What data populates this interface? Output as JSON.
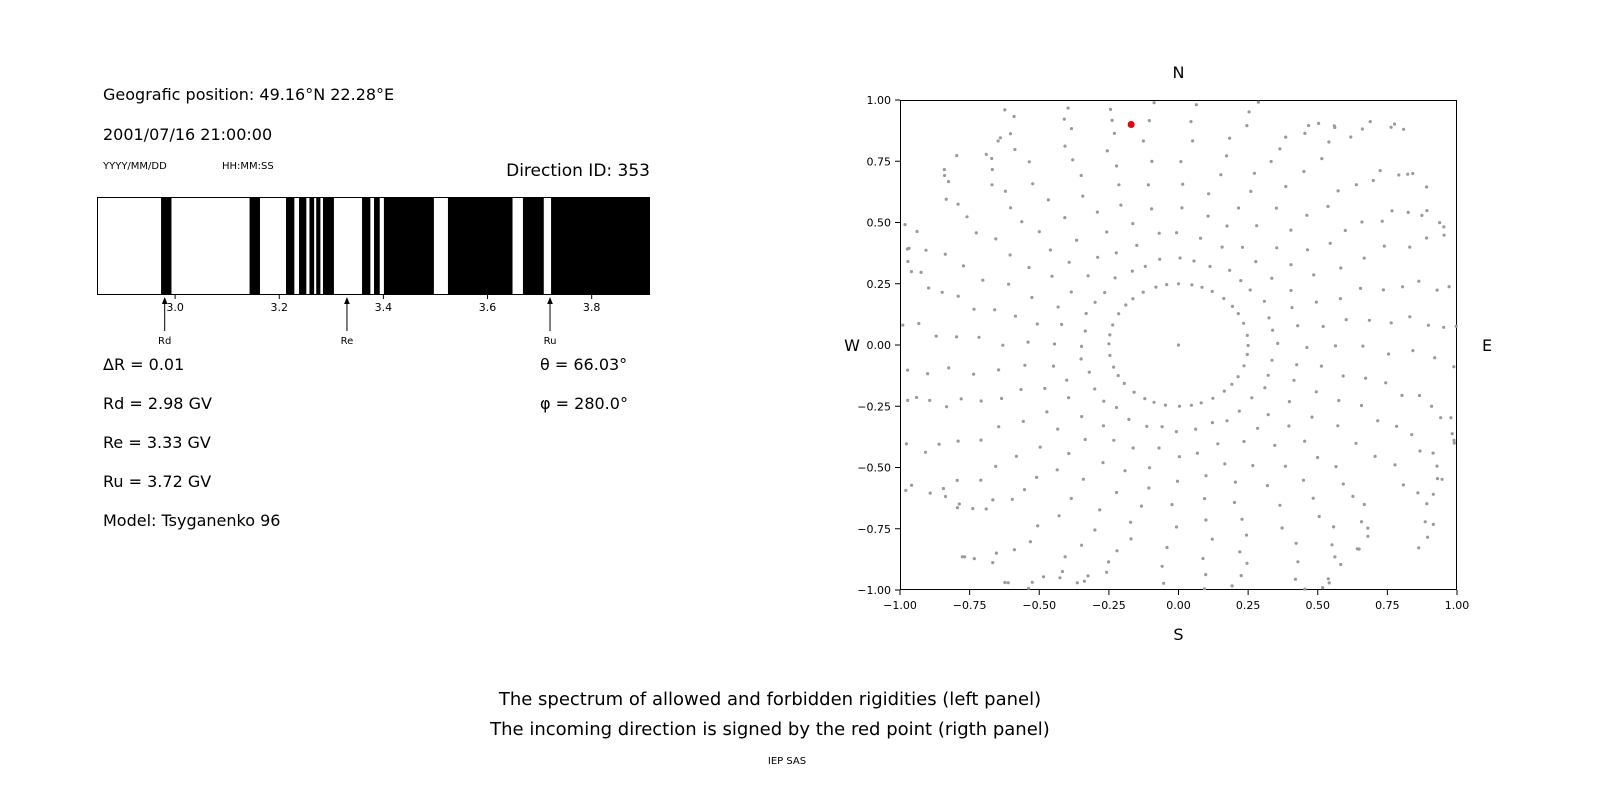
{
  "colors": {
    "background": "#ffffff",
    "text": "#000000",
    "bar": "#000000",
    "dot": "#9a9a9a",
    "red_point": "#e8000b"
  },
  "header": {
    "geographic_position": "Geografic position: 49.16°N 22.28°E",
    "datetime": "2001/07/16 21:00:00",
    "date_format_label": "YYYY/MM/DD",
    "time_format_label": "HH:MM:SS",
    "direction_id": "Direction ID: 353"
  },
  "info": {
    "delta_r": "ΔR = 0.01",
    "rd": "Rd = 2.98 GV",
    "re": "Re = 3.33 GV",
    "ru": "Ru = 3.72 GV",
    "model": "Model: Tsyganenko 96",
    "theta": "θ = 66.03°",
    "phi": "φ = 280.0°"
  },
  "caption": {
    "line1": "The spectrum of allowed and forbidden rigidities (left panel)",
    "line2": "The incoming direction is signed by the red point (rigth panel)",
    "credit": "IEP SAS"
  },
  "chart_data": [
    {
      "id": "rigidity-spectrum",
      "type": "bar",
      "x_range": [
        2.85,
        3.912
      ],
      "x_ticks": [
        3.0,
        3.2,
        3.4,
        3.6,
        3.8
      ],
      "allowed_bands_gv": [
        [
          2.973,
          2.993
        ],
        [
          3.143,
          3.163
        ],
        [
          3.213,
          3.229
        ],
        [
          3.238,
          3.252
        ],
        [
          3.258,
          3.267
        ],
        [
          3.271,
          3.279
        ],
        [
          3.284,
          3.305
        ],
        [
          3.359,
          3.375
        ],
        [
          3.382,
          3.393
        ],
        [
          3.401,
          3.497
        ],
        [
          3.524,
          3.648
        ],
        [
          3.668,
          3.708
        ],
        [
          3.722,
          3.912
        ]
      ],
      "markers": [
        {
          "label": "Rd",
          "value_gv": 2.98
        },
        {
          "label": "Re",
          "value_gv": 3.33
        },
        {
          "label": "Ru",
          "value_gv": 3.72
        }
      ]
    },
    {
      "id": "incoming-direction-map",
      "type": "scatter",
      "compass_labels": {
        "top": "N",
        "bottom": "S",
        "left": "W",
        "right": "E"
      },
      "xlim": [
        -1.0,
        1.0
      ],
      "ylim": [
        -1.0,
        1.0
      ],
      "ticks": [
        -1.0,
        -0.75,
        -0.5,
        -0.25,
        0.0,
        0.25,
        0.5,
        0.75,
        1.0
      ],
      "red_point": {
        "x": -0.17,
        "y": 0.9
      },
      "dot_pattern": {
        "arms": 36,
        "inner_radius": 0.25,
        "outer_radius_min": 1.04,
        "outer_radius_max": 1.2,
        "points_per_arm": 15,
        "curl_deg": 13,
        "center_dot": true
      }
    }
  ]
}
